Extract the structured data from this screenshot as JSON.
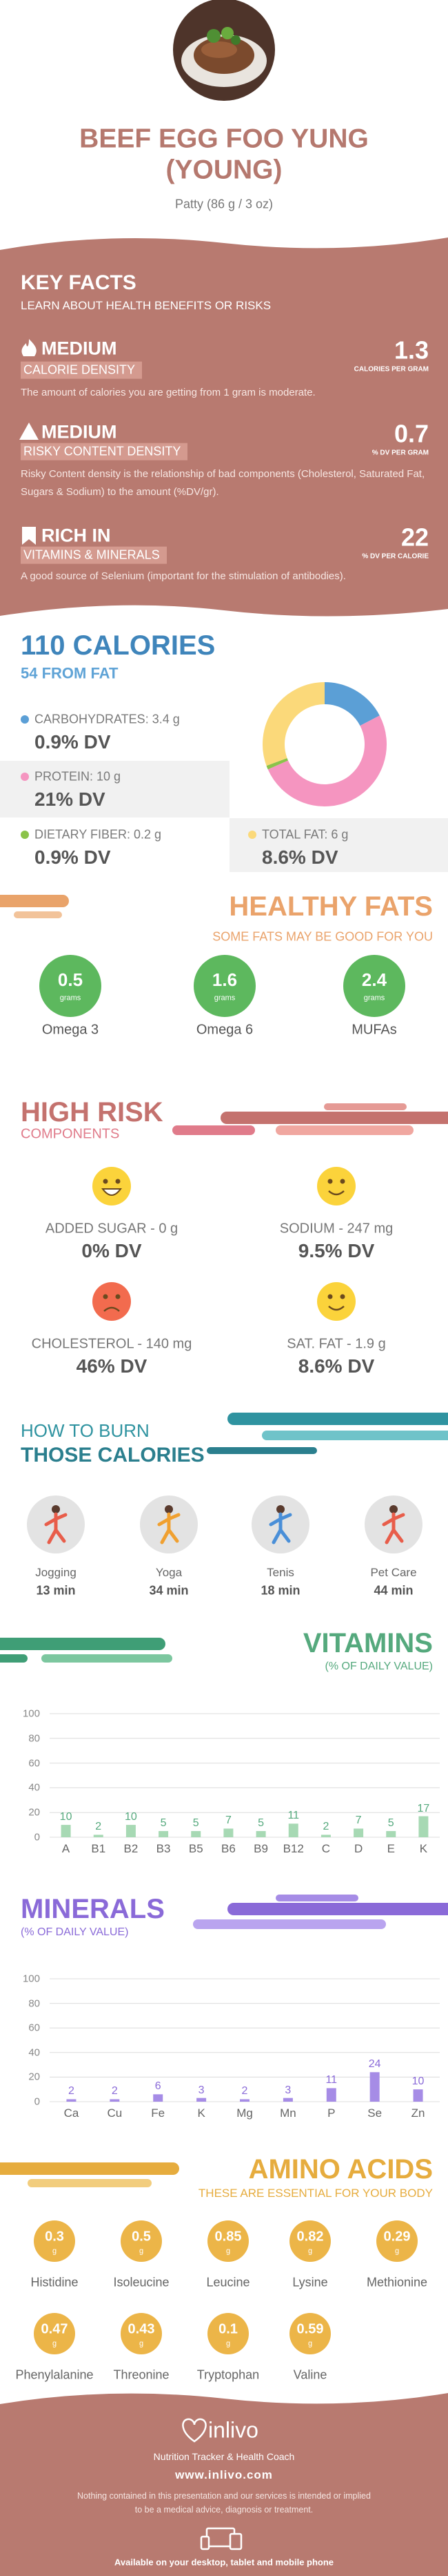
{
  "header": {
    "title_line_1": "BEEF EGG FOO YUNG",
    "title_line_2": "(YOUNG)",
    "serving": "Patty (86 g / 3 oz)"
  },
  "key_facts": {
    "title": "KEY FACTS",
    "subtitle": "LEARN ABOUT HEALTH BENEFITS OR RISKS",
    "items": [
      {
        "level": "MEDIUM",
        "label": "CALORIE DENSITY",
        "value": 1.3,
        "unit": "CALORIES PER GRAM",
        "description": "The amount of calories you are getting from 1 gram is moderate."
      },
      {
        "level": "MEDIUM",
        "label": "RISKY CONTENT DENSITY",
        "value": 0.7,
        "unit": "% DV PER GRAM",
        "description": "Risky Content density is the relationship of bad components (Cholesterol, Saturated Fat, Sugars & Sodium) to the amount (%DV/gr)."
      },
      {
        "level": "RICH  IN",
        "label": "VITAMINS & MINERALS",
        "value": 22,
        "unit": "% DV PER CALORIE",
        "description": "A good source of Selenium (important for the stimulation of antibodies)."
      }
    ]
  },
  "calories": {
    "title": "110 CALORIES",
    "subtitle": "54 FROM FAT",
    "nutrients": [
      {
        "label": "CARBOHYDRATES: 3.4 g",
        "dv": "0.9% DV"
      },
      {
        "label": "PROTEIN: 10 g",
        "dv": "21% DV"
      },
      {
        "label": "DIETARY FIBER: 0.2 g",
        "dv": "0.9% DV"
      },
      {
        "label": "TOTAL FAT: 6 g",
        "dv": "8.6% DV"
      }
    ]
  },
  "healthy_fats": {
    "title": "HEALTHY FATS",
    "subtitle": "SOME FATS MAY BE GOOD FOR YOU",
    "unit": "grams",
    "items": [
      {
        "name": "Omega 3",
        "value": 0.5
      },
      {
        "name": "Omega 6",
        "value": 1.6
      },
      {
        "name": "MUFAs",
        "value": 2.4
      }
    ]
  },
  "high_risk": {
    "title": "HIGH RISK",
    "subtitle": "COMPONENTS",
    "items": [
      {
        "label": "ADDED SUGAR - 0 g",
        "dv": "0% DV"
      },
      {
        "label": "SODIUM - 247 mg",
        "dv": "9.5% DV"
      },
      {
        "label": "CHOLESTEROL - 140 mg",
        "dv": "46% DV"
      },
      {
        "label": "SAT. FAT - 1.9 g",
        "dv": "8.6% DV"
      }
    ]
  },
  "burn": {
    "title_1": "HOW TO BURN",
    "title_2": "THOSE CALORIES",
    "activities": [
      {
        "name": "Jogging",
        "time": "13 min"
      },
      {
        "name": "Yoga",
        "time": "34 min"
      },
      {
        "name": "Tenis",
        "time": "18 min"
      },
      {
        "name": "Pet Care",
        "time": "44 min"
      }
    ]
  },
  "chart_data": [
    {
      "type": "pie",
      "values": [
        3.4,
        10,
        0.2,
        6
      ],
      "colors": [
        "#5b9fd6",
        "#f595c0",
        "#8bc34a",
        "#fbd97a"
      ]
    },
    {
      "type": "bar",
      "title": "VITAMINS",
      "subtitle": "(% OF DAILY VALUE)",
      "categories": [
        "A",
        "B1",
        "B2",
        "B3",
        "B5",
        "B6",
        "B9",
        "B12",
        "C",
        "D",
        "E",
        "K"
      ],
      "values": [
        10,
        2,
        10,
        5,
        5,
        7,
        5,
        11,
        2,
        7,
        5,
        17
      ],
      "ylim": [
        0,
        100
      ],
      "yticks": [
        0,
        20,
        40,
        60,
        80,
        100
      ],
      "grid": true,
      "color": "#a7d9b4",
      "label_color": "#55a97d"
    },
    {
      "type": "bar",
      "title": "MINERALS",
      "subtitle": "(% OF DAILY VALUE)",
      "categories": [
        "Ca",
        "Cu",
        "Fe",
        "K",
        "Mg",
        "Mn",
        "P",
        "Se",
        "Zn"
      ],
      "values": [
        2,
        2,
        6,
        3,
        2,
        3,
        11,
        24,
        10
      ],
      "ylim": [
        0,
        100
      ],
      "yticks": [
        0,
        20,
        40,
        60,
        80,
        100
      ],
      "grid": true,
      "color": "#a68ce6",
      "label_color": "#8a6ad8"
    }
  ],
  "amino_acids": {
    "title": "AMINO ACIDS",
    "subtitle": "THESE ARE ESSENTIAL FOR YOUR BODY",
    "unit": "g",
    "items": [
      {
        "name": "Histidine",
        "value": 0.3
      },
      {
        "name": "Isoleucine",
        "value": 0.5
      },
      {
        "name": "Leucine",
        "value": 0.85
      },
      {
        "name": "Lysine",
        "value": 0.82
      },
      {
        "name": "Methionine",
        "value": 0.29
      },
      {
        "name": "Phenylalanine",
        "value": 0.47
      },
      {
        "name": "Threonine",
        "value": 0.43
      },
      {
        "name": "Tryptophan",
        "value": 0.1
      },
      {
        "name": "Valine",
        "value": 0.59
      }
    ]
  },
  "footer": {
    "brand": "inlivo",
    "tagline": "Nutrition Tracker & Health Coach",
    "url": "www.inlivo.com",
    "disclaimer": "Nothing contained in this presentation and our services is intended or implied to be a medical advice, diagnosis or treatment.",
    "availability": "Available on your desktop, tablet and mobile phone"
  }
}
